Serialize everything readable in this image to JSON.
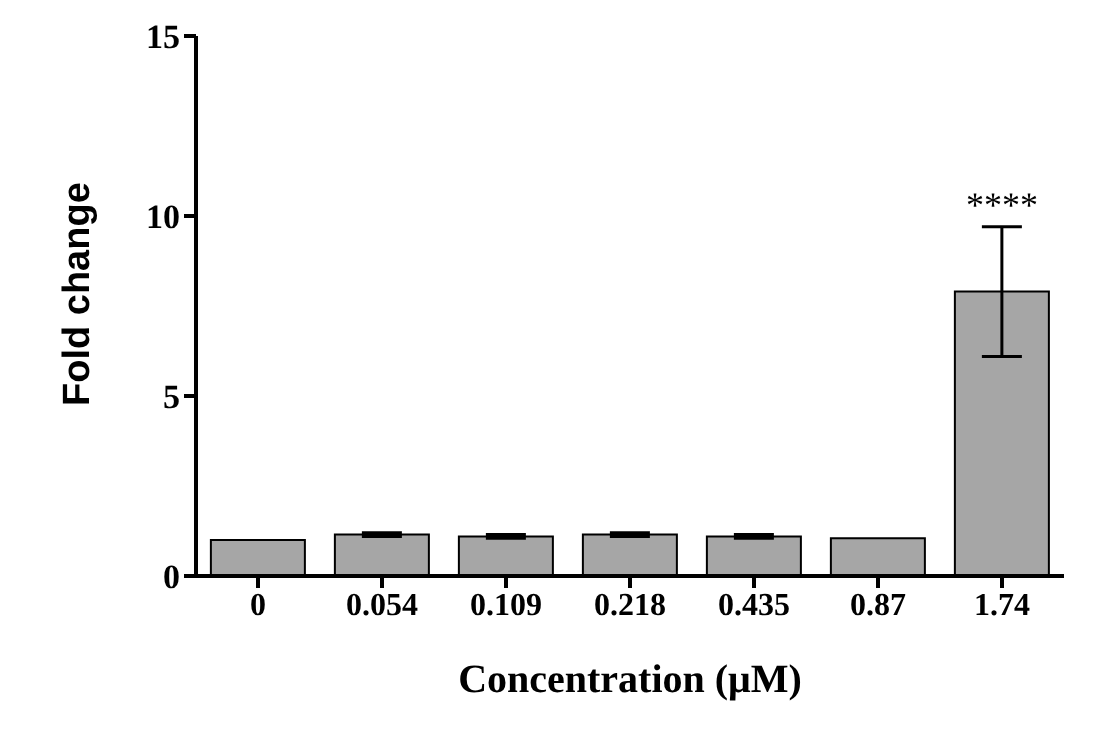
{
  "chart_data": {
    "type": "bar",
    "xlabel": "Concentration (μM)",
    "ylabel": "Fold change",
    "categories": [
      "0",
      "0.054",
      "0.109",
      "0.218",
      "0.435",
      "0.87",
      "1.74"
    ],
    "values": [
      1.0,
      1.15,
      1.1,
      1.15,
      1.1,
      1.05,
      7.9
    ],
    "errors": [
      null,
      0.05,
      0.05,
      0.05,
      0.05,
      null,
      1.8
    ],
    "color": "#a6a6a6",
    "ylim": [
      0,
      15
    ],
    "yticks": [
      0,
      5,
      10,
      15
    ],
    "annotations": [
      {
        "text": "****",
        "x": "1.74",
        "y": 9.7
      }
    ]
  }
}
